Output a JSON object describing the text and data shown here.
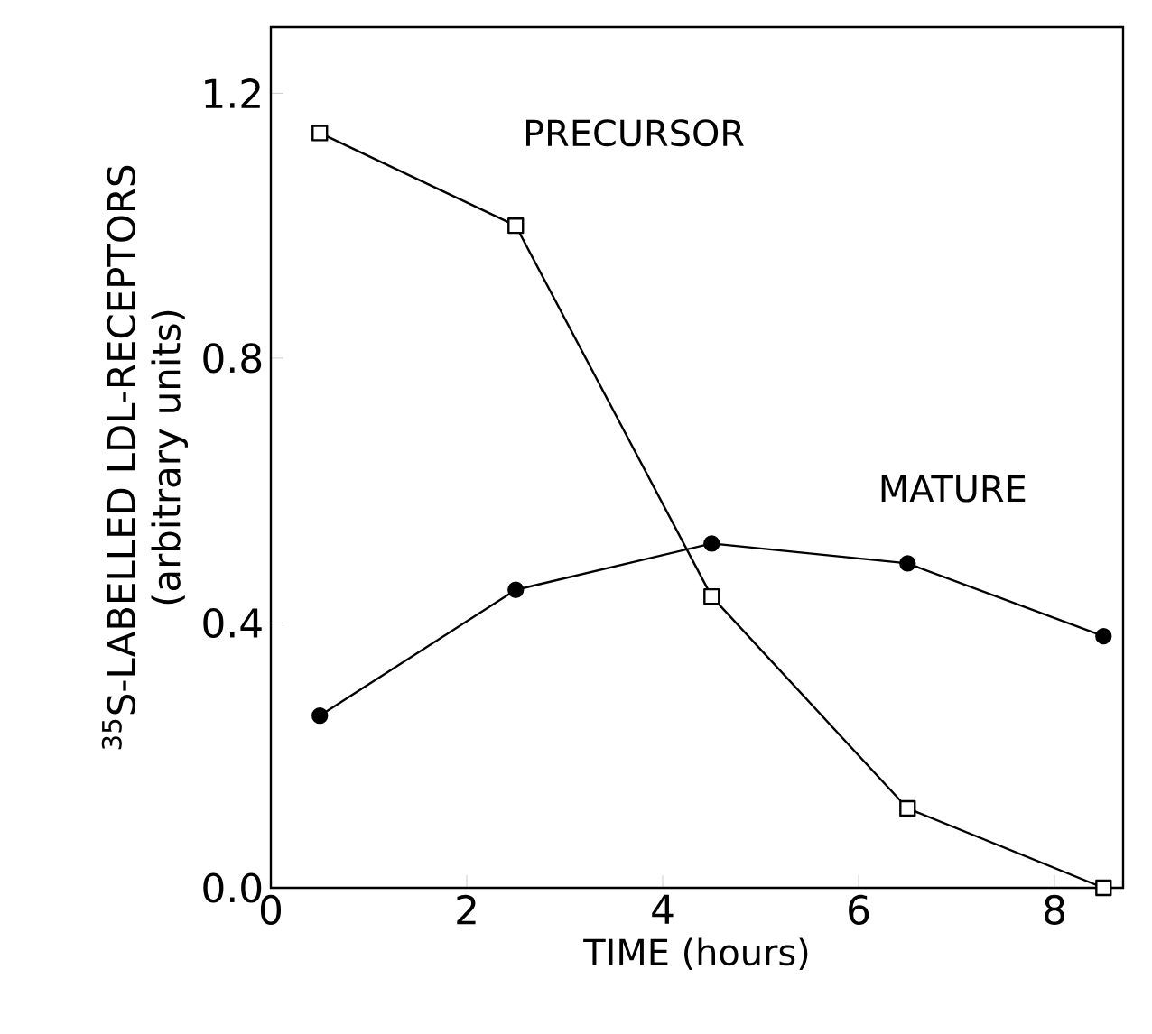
{
  "chart_data": {
    "type": "line",
    "xlabel": "TIME (hours)",
    "ylabel": "$^{35}$S-LABELLED LDL-RECEPTORS (arbitrary units)",
    "x": [
      0.5,
      2.5,
      4.5,
      6.5,
      8.5
    ],
    "series": [
      {
        "name": "PRECURSOR",
        "color": "#000000",
        "marker": "square",
        "values": [
          1.14,
          1.0,
          0.44,
          0.12,
          0.0
        ]
      },
      {
        "name": "MATURE",
        "color": "#000000",
        "marker": "circle",
        "values": [
          0.26,
          0.45,
          0.52,
          0.49,
          0.38
        ]
      }
    ],
    "xlim": [
      0,
      8.7
    ],
    "ylim": [
      0,
      1.3
    ],
    "xticks": [
      0,
      2,
      4,
      6,
      8
    ],
    "yticks": [
      {
        "value": 0,
        "label": "0.0"
      },
      {
        "value": 0.4,
        "label": "0.4"
      },
      {
        "value": 0.8,
        "label": "0.8"
      },
      {
        "value": 1.2,
        "label": "1.2"
      }
    ],
    "grid": false,
    "line_style": "solid"
  }
}
